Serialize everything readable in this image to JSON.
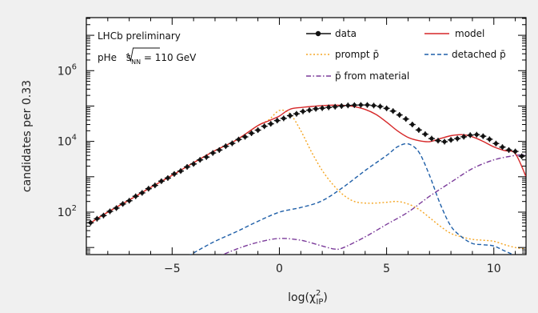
{
  "chart_data": {
    "type": "line",
    "xlabel": "log(χ²_IP)",
    "ylabel": "candidates per 0.33",
    "xlim": [
      -9,
      11.5
    ],
    "ylim_log10": [
      0.8,
      7.5
    ],
    "y_scale": "log",
    "x_ticks": [
      -5,
      0,
      5,
      10
    ],
    "x_tick_labels": [
      "−5",
      "0",
      "5",
      "10"
    ],
    "y_ticks": [
      100,
      10000,
      1000000
    ],
    "grid": false,
    "legend_placement": "top-right",
    "annotations": {
      "line1": "LHCb preliminary",
      "line2_prefix": "pHe ",
      "line2_sqrt": "s",
      "line2_sub": "NN",
      "line2_suffix": " = 110 GeV"
    },
    "series": [
      {
        "name": "data",
        "style": "points",
        "color": "#111111",
        "x": [
          -8.8,
          -8.5,
          -8.2,
          -7.9,
          -7.6,
          -7.3,
          -7.0,
          -6.7,
          -6.4,
          -6.1,
          -5.8,
          -5.5,
          -5.2,
          -4.9,
          -4.6,
          -4.3,
          -4.0,
          -3.7,
          -3.4,
          -3.1,
          -2.8,
          -2.5,
          -2.2,
          -1.9,
          -1.6,
          -1.3,
          -1.0,
          -0.7,
          -0.4,
          -0.1,
          0.2,
          0.5,
          0.8,
          1.1,
          1.4,
          1.7,
          2.0,
          2.3,
          2.6,
          2.9,
          3.2,
          3.5,
          3.8,
          4.1,
          4.4,
          4.7,
          5.0,
          5.3,
          5.6,
          5.9,
          6.2,
          6.5,
          6.8,
          7.1,
          7.4,
          7.7,
          8.0,
          8.3,
          8.6,
          8.9,
          9.2,
          9.5,
          9.8,
          10.1,
          10.4,
          10.7,
          11.0,
          11.3
        ],
        "y": [
          50,
          65,
          80,
          105,
          130,
          170,
          210,
          280,
          350,
          460,
          570,
          750,
          920,
          1200,
          1450,
          1900,
          2300,
          3000,
          3600,
          4700,
          5700,
          7300,
          8800,
          11300,
          13400,
          17000,
          20800,
          26800,
          31400,
          38800,
          44700,
          53400,
          60300,
          70200,
          76300,
          83300,
          87000,
          91500,
          95500,
          100000,
          104000,
          106000,
          107000,
          107000,
          103000,
          97000,
          86000,
          72000,
          56000,
          43000,
          30000,
          21000,
          16000,
          12000,
          10500,
          9800,
          11000,
          12000,
          13500,
          15000,
          15500,
          14000,
          11500,
          8700,
          6900,
          5700,
          5200,
          3800
        ]
      },
      {
        "name": "model",
        "style": "line",
        "color": "#d62728",
        "x": [
          -8.8,
          -8.0,
          -7.0,
          -6.0,
          -5.0,
          -4.0,
          -3.0,
          -2.0,
          -1.0,
          -0.5,
          0.0,
          0.3,
          0.6,
          1.0,
          1.5,
          2.0,
          2.5,
          3.0,
          3.5,
          4.0,
          4.5,
          5.0,
          5.5,
          6.0,
          6.5,
          7.0,
          7.5,
          8.0,
          8.5,
          9.0,
          9.5,
          10.0,
          10.5,
          11.0,
          11.5
        ],
        "y": [
          50,
          100,
          220,
          500,
          1100,
          2500,
          5500,
          11000,
          28000,
          38000,
          52000,
          70000,
          85000,
          91000,
          97000,
          103000,
          106000,
          104000,
          96000,
          80000,
          58000,
          35000,
          20000,
          13000,
          10500,
          9800,
          12000,
          14500,
          15500,
          13500,
          10000,
          7000,
          5500,
          4500,
          1000
        ]
      },
      {
        "name": "prompt p̄",
        "style": "dotted",
        "color": "#f5a623",
        "x": [
          -8.8,
          -8.0,
          -7.0,
          -6.0,
          -5.0,
          -4.0,
          -3.0,
          -2.0,
          -1.0,
          -0.5,
          0.0,
          0.5,
          1.0,
          1.5,
          2.0,
          2.5,
          3.0,
          3.5,
          4.0,
          4.5,
          5.0,
          5.5,
          6.0,
          6.5,
          7.0,
          7.5,
          8.0,
          8.5,
          9.0,
          9.5,
          10.0,
          10.5,
          11.0,
          11.5
        ],
        "y": [
          50,
          100,
          220,
          500,
          1100,
          2500,
          5500,
          11000,
          28000,
          40000,
          75000,
          60000,
          20000,
          5000,
          1500,
          600,
          300,
          200,
          180,
          180,
          190,
          200,
          170,
          120,
          70,
          40,
          25,
          20,
          17,
          16,
          15,
          12,
          10,
          9
        ]
      },
      {
        "name": "detached p̄",
        "style": "dashed",
        "color": "#1f5fa8",
        "x": [
          -6.3,
          -5.5,
          -5.0,
          -4.0,
          -3.0,
          -2.0,
          -1.0,
          0.0,
          1.0,
          2.0,
          3.0,
          4.0,
          5.0,
          5.5,
          6.0,
          6.5,
          7.0,
          7.5,
          8.0,
          8.5,
          9.0,
          9.5,
          10.0,
          10.5,
          11.0,
          11.5
        ],
        "y": [
          1,
          2,
          3,
          7,
          15,
          28,
          55,
          100,
          135,
          210,
          520,
          1500,
          4000,
          7000,
          8500,
          5000,
          1100,
          170,
          40,
          20,
          13,
          12,
          11,
          8,
          6,
          5
        ]
      },
      {
        "name": "p̄ from material",
        "style": "dashdot",
        "color": "#7b3b9a",
        "x": [
          -5.0,
          -4.0,
          -3.0,
          -2.0,
          -1.0,
          0.0,
          1.0,
          2.0,
          2.6,
          3.0,
          4.0,
          5.0,
          6.0,
          7.0,
          8.0,
          9.0,
          10.0,
          11.0,
          11.5
        ],
        "y": [
          1,
          2.5,
          5,
          9,
          14,
          18,
          16,
          11,
          9,
          10,
          20,
          45,
          100,
          280,
          700,
          1700,
          3000,
          4000,
          4200
        ]
      }
    ]
  }
}
